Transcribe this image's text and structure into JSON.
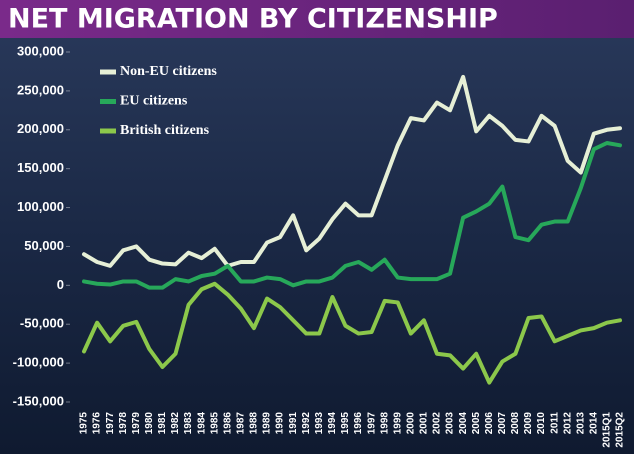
{
  "chart_data": {
    "type": "line",
    "title": "NET MIGRATION BY CITIZENSHIP",
    "categories": [
      "1975",
      "1976",
      "1977",
      "1978",
      "1979",
      "1980",
      "1981",
      "1982",
      "1983",
      "1984",
      "1985",
      "1986",
      "1987",
      "1988",
      "1989",
      "1990",
      "1991",
      "1992",
      "1993",
      "1994",
      "1995",
      "1996",
      "1997",
      "1998",
      "1999",
      "2000",
      "2001",
      "2002",
      "2003",
      "2004",
      "2005",
      "2006",
      "2007",
      "2008",
      "2009",
      "2010",
      "2011",
      "2012",
      "2013",
      "2014",
      "2015Q1",
      "2015Q2"
    ],
    "series": [
      {
        "name": "Non-EU citizens",
        "color": "#e6efd6",
        "values": [
          40000,
          30000,
          25000,
          45000,
          50000,
          33000,
          28000,
          27000,
          42000,
          35000,
          47000,
          25000,
          30000,
          30000,
          55000,
          62000,
          90000,
          45000,
          60000,
          85000,
          105000,
          90000,
          90000,
          135000,
          180000,
          215000,
          212000,
          235000,
          225000,
          268000,
          198000,
          218000,
          205000,
          187000,
          185000,
          218000,
          205000,
          160000,
          145000,
          195000,
          200000,
          202000
        ]
      },
      {
        "name": "EU citizens",
        "color": "#27a85a",
        "values": [
          5000,
          2000,
          1000,
          5000,
          5000,
          -3000,
          -3000,
          8000,
          5000,
          12000,
          15000,
          25000,
          5000,
          5000,
          10000,
          8000,
          0,
          5000,
          5000,
          10000,
          25000,
          30000,
          20000,
          33000,
          10000,
          8000,
          8000,
          8000,
          15000,
          87000,
          95000,
          105000,
          127000,
          62000,
          58000,
          78000,
          82000,
          82000,
          125000,
          175000,
          183000,
          180000
        ]
      },
      {
        "name": "British citizens",
        "color": "#8cc84b",
        "values": [
          -85000,
          -48000,
          -72000,
          -52000,
          -47000,
          -82000,
          -105000,
          -88000,
          -25000,
          -5000,
          2000,
          -12000,
          -30000,
          -55000,
          -17000,
          -28000,
          -45000,
          -62000,
          -62000,
          -15000,
          -52000,
          -62000,
          -60000,
          -20000,
          -22000,
          -62000,
          -45000,
          -88000,
          -90000,
          -107000,
          -88000,
          -125000,
          -98000,
          -88000,
          -42000,
          -40000,
          -72000,
          -65000,
          -58000,
          -55000,
          -48000,
          -45000
        ]
      }
    ],
    "ylim": [
      -150000,
      300000
    ],
    "yticks": [
      {
        "value": -150000,
        "label": "-150,000"
      },
      {
        "value": -100000,
        "label": "-100,000"
      },
      {
        "value": -50000,
        "label": "-50,000"
      },
      0,
      {
        "value": 50000,
        "label": "50,000"
      },
      {
        "value": 100000,
        "label": "100,000"
      },
      {
        "value": 150000,
        "label": "150,000"
      },
      {
        "value": 200000,
        "label": "200,000"
      },
      {
        "value": 250000,
        "label": "250,000"
      },
      {
        "value": 300000,
        "label": "300,000"
      }
    ]
  }
}
